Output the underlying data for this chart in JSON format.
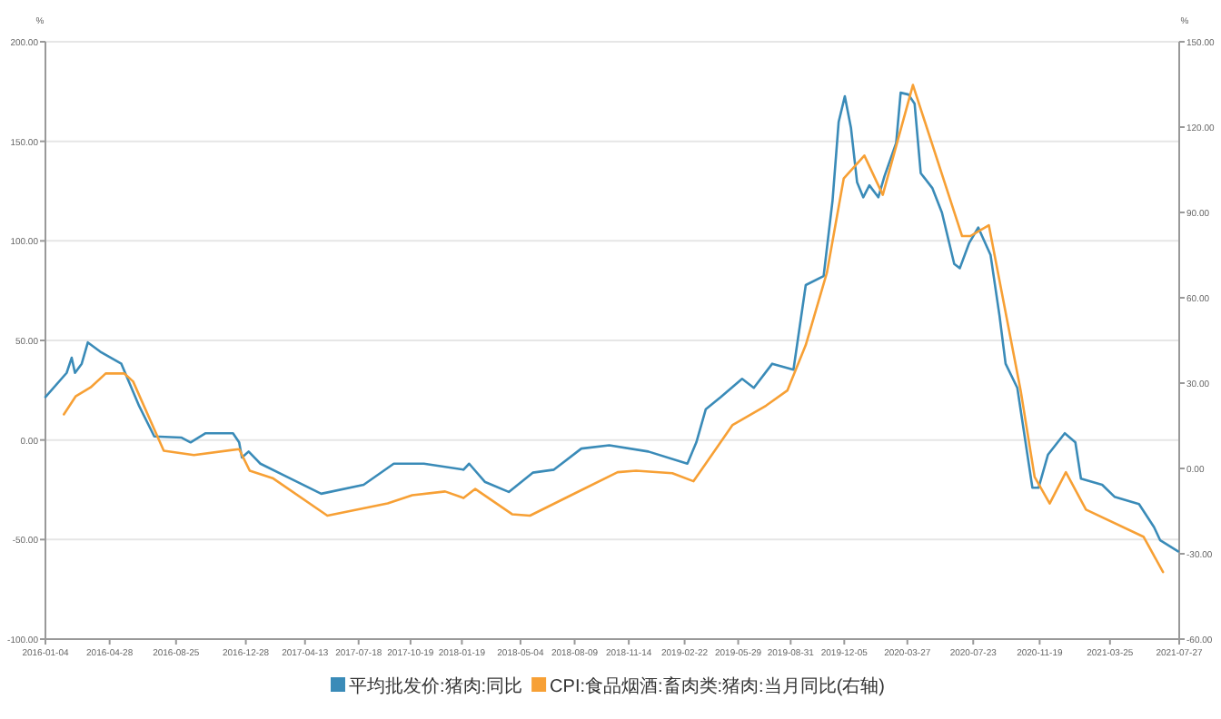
{
  "chart_data": {
    "type": "line",
    "ylabel": "%",
    "y2label": "%",
    "grid": "y",
    "legend": "bottom",
    "xlim": [
      "2016-01-04",
      "2021-07-27"
    ],
    "xticks": [
      "2016-01-04",
      "2016-04-28",
      "2016-08-25",
      "2016-12-28",
      "2017-04-13",
      "2017-07-18",
      "2017-10-19",
      "2018-01-19",
      "2018-05-04",
      "2018-08-09",
      "2018-11-14",
      "2019-02-22",
      "2019-05-29",
      "2019-08-31",
      "2019-12-05",
      "2020-03-27",
      "2020-07-23",
      "2020-11-19",
      "2021-03-25",
      "2021-07-27"
    ],
    "ylim": [
      -100,
      200
    ],
    "yticks": [
      {
        "value": -100,
        "label": "-100.00"
      },
      {
        "value": -50,
        "label": "-50.00"
      },
      {
        "value": 0,
        "label": "0.00"
      },
      {
        "value": 50,
        "label": "50.00"
      },
      {
        "value": 100,
        "label": "100.00"
      },
      {
        "value": 150,
        "label": "150.00"
      },
      {
        "value": 200,
        "label": "200.00"
      }
    ],
    "y2lim": [
      -60,
      150
    ],
    "y2ticks": [
      {
        "value": -60,
        "label": "-60.00"
      },
      {
        "value": -30,
        "label": "-30.00"
      },
      {
        "value": 0,
        "label": "0.00"
      },
      {
        "value": 30,
        "label": "30.00"
      },
      {
        "value": 60,
        "label": "60.00"
      },
      {
        "value": 90,
        "label": "90.00"
      },
      {
        "value": 120,
        "label": "120.00"
      },
      {
        "value": 150,
        "label": "150.00"
      }
    ],
    "series": [
      {
        "name": "平均批发价:猪肉:同比",
        "color": "#3a8bb8",
        "x": [
          "2016-01-04",
          "2016-02-11",
          "2016-02-20",
          "2016-02-26",
          "2016-03-09",
          "2016-03-20",
          "2016-04-11",
          "2016-05-19",
          "2016-06-20",
          "2016-07-17",
          "2016-09-04",
          "2016-09-20",
          "2016-10-17",
          "2016-12-05",
          "2016-12-16",
          "2016-12-21",
          "2017-01-02",
          "2017-01-23",
          "2017-03-08",
          "2017-05-12",
          "2017-07-27",
          "2017-09-19",
          "2017-11-12",
          "2018-01-22",
          "2018-02-01",
          "2018-03-01",
          "2018-04-13",
          "2018-05-26",
          "2018-07-03",
          "2018-08-21",
          "2018-10-10",
          "2018-12-19",
          "2019-02-27",
          "2019-03-15",
          "2019-04-01",
          "2019-04-28",
          "2019-06-05",
          "2019-06-26",
          "2019-07-29",
          "2019-09-05",
          "2019-09-27",
          "2019-10-29",
          "2019-11-14",
          "2019-11-25",
          "2019-12-06",
          "2019-12-17",
          "2019-12-28",
          "2020-01-08",
          "2020-01-19",
          "2020-02-04",
          "2020-02-15",
          "2020-03-07",
          "2020-03-15",
          "2020-03-29",
          "2020-04-09",
          "2020-04-20",
          "2020-05-11",
          "2020-05-28",
          "2020-06-19",
          "2020-06-29",
          "2020-07-16",
          "2020-08-01",
          "2020-08-23",
          "2020-09-08",
          "2020-09-19",
          "2020-10-10",
          "2020-11-06",
          "2020-11-17",
          "2020-12-04",
          "2021-01-03",
          "2021-01-22",
          "2021-02-01",
          "2021-03-11",
          "2021-04-02",
          "2021-05-16",
          "2021-06-12",
          "2021-06-23",
          "2021-07-25"
        ],
        "values": [
          21.6,
          33.7,
          41.3,
          33.7,
          38.3,
          49,
          44.4,
          38.3,
          17,
          1.8,
          1.2,
          -1.2,
          3.4,
          3.4,
          -1.2,
          -8.8,
          -5.8,
          -11.9,
          -18,
          -27,
          -22.5,
          -11.9,
          -11.9,
          -14.9,
          -11.9,
          -21,
          -26.1,
          -16.4,
          -14.9,
          -4.3,
          -2.7,
          -5.8,
          -11.9,
          -1.2,
          15.5,
          21.6,
          30.7,
          26.2,
          38.3,
          35.3,
          77.8,
          82.3,
          120.3,
          159.8,
          172.6,
          156.8,
          129.4,
          121.9,
          127.9,
          121.9,
          132.5,
          149.2,
          174.4,
          173.5,
          168.9,
          134,
          126.4,
          114.2,
          88.4,
          86.3,
          99.1,
          106.7,
          93,
          62.6,
          38.3,
          26.2,
          -24,
          -24,
          -7.3,
          3.4,
          -1.2,
          -19.4,
          -22.5,
          -28.5,
          -32.2,
          -43.8,
          -50.4,
          -55.9
        ]
      },
      {
        "name": "CPI:食品烟酒:畜肉类:猪肉:当月同比(右轴)",
        "color": "#f7a035",
        "axis": "y2",
        "x": [
          "2016-02-06",
          "2016-02-27",
          "2016-03-25",
          "2016-04-21",
          "2016-05-24",
          "2016-06-09",
          "2016-08-03",
          "2016-09-26",
          "2016-12-16",
          "2017-01-04",
          "2017-02-14",
          "2017-05-23",
          "2017-09-08",
          "2017-10-22",
          "2017-12-20",
          "2018-01-22",
          "2018-02-12",
          "2018-04-19",
          "2018-05-21",
          "2018-08-10",
          "2018-10-25",
          "2018-11-27",
          "2019-01-31",
          "2019-03-10",
          "2019-05-19",
          "2019-07-18",
          "2019-08-25",
          "2019-09-27",
          "2019-11-04",
          "2019-12-04",
          "2020-01-10",
          "2020-02-12",
          "2020-04-06",
          "2020-07-03",
          "2020-07-18",
          "2020-08-20",
          "2020-10-16",
          "2020-11-10",
          "2020-12-07",
          "2021-01-05",
          "2021-02-10",
          "2021-05-24",
          "2021-06-28"
        ],
        "values": [
          19,
          25.3,
          28.5,
          33.4,
          33.4,
          30.6,
          6.2,
          4.7,
          6.8,
          -0.8,
          -3.4,
          -16.6,
          -12.3,
          -9.4,
          -8.1,
          -10.4,
          -7.2,
          -16.1,
          -16.6,
          -8.7,
          -1.3,
          -0.8,
          -1.7,
          -4.5,
          15.3,
          22.1,
          27.4,
          43.4,
          68.9,
          101.9,
          110,
          96.2,
          134.8,
          81.7,
          81.7,
          85.5,
          27.4,
          -3,
          -12.3,
          -1.3,
          -14.5,
          -24,
          -36.4
        ]
      }
    ]
  }
}
